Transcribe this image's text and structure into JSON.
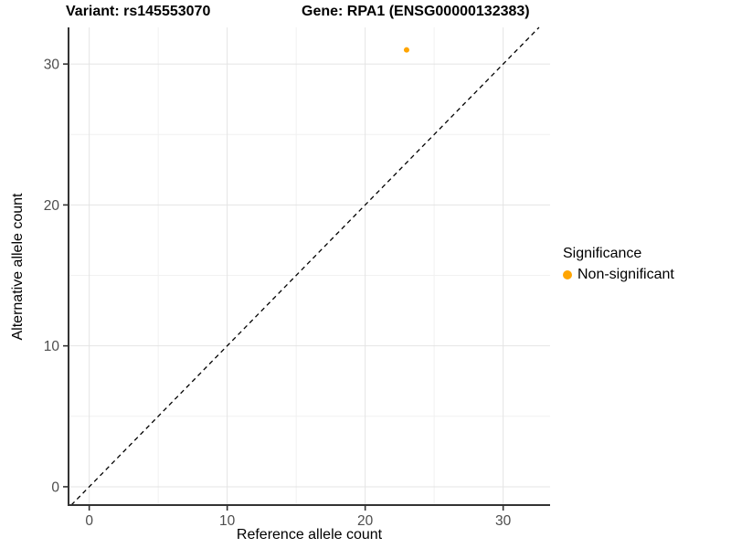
{
  "header": {
    "variant_title": "Variant: rs145553070",
    "gene_title": "Gene: RPA1 (ENSG00000132383)"
  },
  "legend": {
    "title": "Significance",
    "items": [
      {
        "label": "Non-significant",
        "color": "#FFA500"
      }
    ]
  },
  "chart_data": {
    "type": "scatter",
    "title": "Variant: rs145553070  /  Gene: RPA1 (ENSG00000132383)",
    "xlabel": "Reference allele count",
    "ylabel": "Alternative allele count",
    "points": [
      {
        "x": 23,
        "y": 31,
        "series": "Non-significant",
        "color": "#FFA500"
      }
    ],
    "xlim": [
      -1.5,
      33.4
    ],
    "ylim": [
      -1.3,
      32.6
    ],
    "xticks": [
      0,
      10,
      20,
      30
    ],
    "yticks": [
      0,
      10,
      20,
      30
    ],
    "x_minor_ticks": [
      5,
      15,
      25
    ],
    "y_minor_ticks": [
      5,
      15,
      25
    ],
    "identity_line": {
      "slope": 1,
      "intercept": 0,
      "style": "dashed",
      "color": "#000000"
    },
    "grid": {
      "major_color": "#E4E4E4",
      "minor_color": "#F1F1F1"
    },
    "axis_color": "#333333",
    "tick_label_color": "#4D4D4D",
    "point_radius": 3,
    "legend_position": "right",
    "background": "#FFFFFF"
  }
}
